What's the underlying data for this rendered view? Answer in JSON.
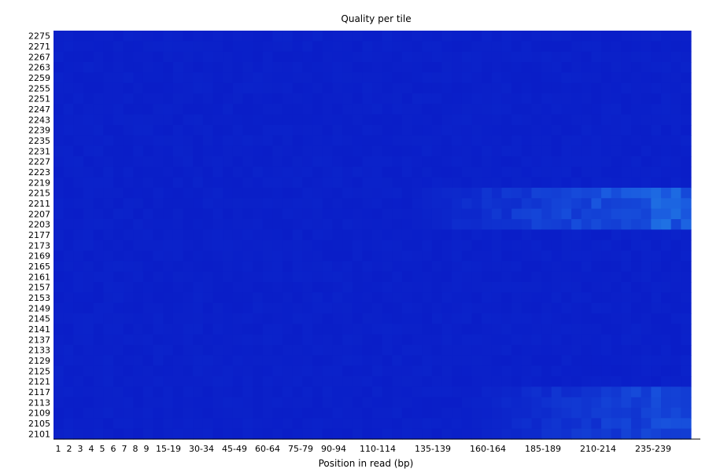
{
  "chart_data": {
    "type": "heatmap",
    "title": "Quality per tile",
    "xlabel": "Position in read (bp)",
    "ylabel": "",
    "x_tick_labels": [
      "1",
      "2",
      "3",
      "4",
      "5",
      "6",
      "7",
      "8",
      "9",
      "15-19",
      "30-34",
      "45-49",
      "60-64",
      "75-79",
      "90-94",
      "110-114",
      "135-139",
      "160-164",
      "185-189",
      "210-214",
      "235-239"
    ],
    "y_tick_labels": [
      "2275",
      "2271",
      "2267",
      "2263",
      "2259",
      "2255",
      "2251",
      "2247",
      "2243",
      "2239",
      "2235",
      "2231",
      "2227",
      "2223",
      "2219",
      "2215",
      "2211",
      "2207",
      "2203",
      "2177",
      "2173",
      "2169",
      "2165",
      "2161",
      "2157",
      "2153",
      "2149",
      "2145",
      "2141",
      "2137",
      "2133",
      "2129",
      "2125",
      "2121",
      "2117",
      "2113",
      "2109",
      "2105",
      "2101"
    ],
    "base_color": "#0a1ec8",
    "elevated_regions": [
      {
        "tiles": [
          "2215",
          "2211",
          "2207",
          "2203"
        ],
        "position_from": "135-139",
        "intensity": "medium"
      },
      {
        "tiles": [
          "2117",
          "2113",
          "2109",
          "2105",
          "2101"
        ],
        "position_from": "160-164",
        "intensity": "low"
      }
    ],
    "colors": {
      "low": "#0a1ec8",
      "mid": "#1a5ae0",
      "high": "#28a0e8"
    }
  }
}
